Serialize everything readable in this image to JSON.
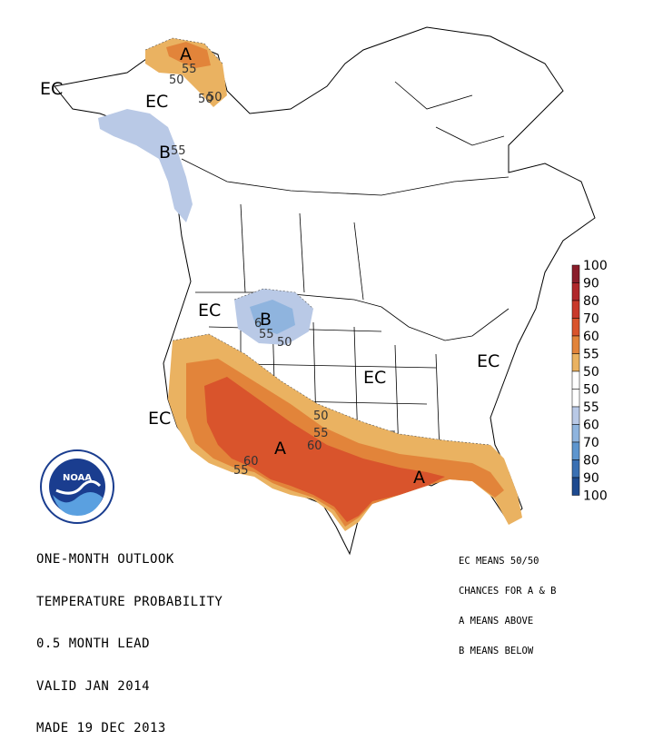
{
  "title_lines": [
    "ONE-MONTH OUTLOOK",
    "TEMPERATURE PROBABILITY",
    "0.5 MONTH LEAD",
    "VALID JAN 2014",
    "MADE 19 DEC 2013"
  ],
  "key_lines": [
    "EC MEANS 50/50",
    "CHANCES FOR A & B",
    "A MEANS ABOVE",
    "B MEANS BELOW"
  ],
  "legend": {
    "labels": [
      "100",
      "90",
      "80",
      "70",
      "60",
      "55",
      "50",
      "50",
      "55",
      "60",
      "70",
      "80",
      "90",
      "100"
    ],
    "colors": [
      "#8a1d2a",
      "#b0272b",
      "#c9392b",
      "#d9542c",
      "#e2843a",
      "#eab261",
      "#ffffff",
      "#ffffff",
      "#b9c9e6",
      "#8fb4de",
      "#5e96cf",
      "#3a70b3",
      "#1e4a8f",
      "#3d1770"
    ]
  },
  "map_labels": {
    "ec": [
      "EC",
      "EC",
      "EC",
      "EC",
      "EC",
      "EC"
    ],
    "above": [
      "A",
      "A",
      "A"
    ],
    "below": [
      "B",
      "B"
    ],
    "contours": [
      "55",
      "50",
      "50",
      "55",
      "6",
      "55",
      "50",
      "50",
      "55",
      "60",
      "60",
      "55",
      "50"
    ]
  },
  "logo": {
    "text": "NOAA",
    "ring_text": "NATIONAL OCEANIC AND ATMOSPHERIC ADMINISTRATION · U.S. DEPARTMENT OF COMMERCE"
  }
}
